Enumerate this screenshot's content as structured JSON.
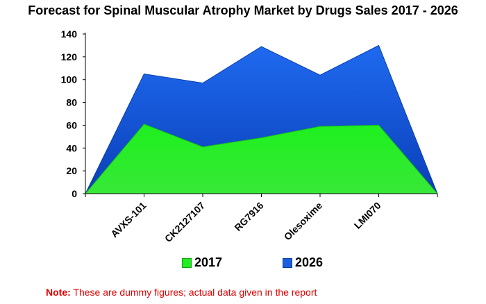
{
  "chart_data": {
    "type": "area",
    "title": "Forecast for Spinal Muscular Atrophy Market by Drugs Sales 2017 - 2026",
    "xlabel": "",
    "ylabel": "",
    "ylim": [
      0,
      140
    ],
    "yticks": [
      "0",
      "20",
      "40",
      "60",
      "80",
      "100",
      "120",
      "140"
    ],
    "categories": [
      "",
      "AVXS-101",
      "CK2127107",
      "RG7916",
      "Olesoxime",
      "LMI070",
      ""
    ],
    "series": [
      {
        "name": "2017",
        "color": "#22ee22",
        "values": [
          0,
          61,
          41,
          49,
          59,
          60,
          0
        ]
      },
      {
        "name": "2026",
        "color": "#1a5fe0",
        "values": [
          0,
          105,
          97,
          129,
          104,
          130,
          0
        ]
      }
    ],
    "grid": false,
    "legend_position": "bottom"
  },
  "note": {
    "label": "Note:",
    "text": " These are dummy figures; actual data given in the report"
  }
}
